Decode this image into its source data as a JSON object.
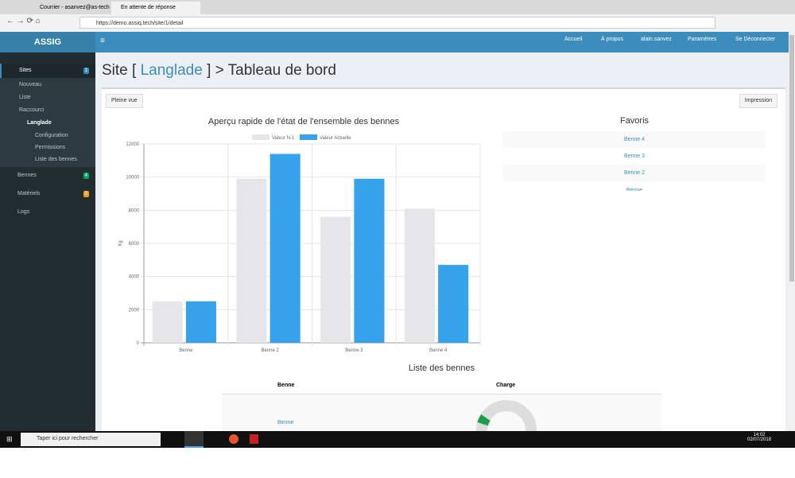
{
  "browser": {
    "tabs": [
      "Courrier - asanvez@as-tech",
      "En attente de réponse"
    ],
    "url": "https://demo.assiq.tech/site/1/detail"
  },
  "navbar": {
    "brand": "ASSIG",
    "links": [
      "Accueil",
      "À propos",
      "alain.sanvez",
      "Paramètres",
      "Se Déconnecter"
    ]
  },
  "sidebar": {
    "items": [
      {
        "label": "Sites",
        "badge": 1
      },
      {
        "label": "Nouveau"
      },
      {
        "label": "Liste"
      },
      {
        "label": "Raccourci"
      },
      {
        "label": "Langlade"
      },
      {
        "label": "Configuration"
      },
      {
        "label": "Permissions"
      },
      {
        "label": "Liste des bennes"
      },
      {
        "label": "Bennes",
        "badge": 4
      },
      {
        "label": "Matériels",
        "badge": 5
      },
      {
        "label": "Logs"
      }
    ]
  },
  "page": {
    "title_prefix": "Site [",
    "site": "Langlade",
    "title_suffix": "] > Tableau de bord",
    "buttons": [
      "Pleine vue",
      "Impression"
    ]
  },
  "chart_data": {
    "type": "bar",
    "title": "Aperçu rapide de l'état de l'ensemble des bennes",
    "ylabel": "Kg",
    "categories": [
      "Benne",
      "Benne 2",
      "Benne 3",
      "Benne 4"
    ],
    "series": [
      {
        "name": "Valeur N-1",
        "color": "#e6e6ea",
        "values": [
          2500,
          9900,
          7600,
          8100
        ]
      },
      {
        "name": "Valeur Actuelle",
        "color": "#36a2eb",
        "values": [
          2500,
          11400,
          9900,
          4700
        ]
      }
    ],
    "ylim": [
      0,
      12000
    ],
    "yticks": [
      0,
      2000,
      4000,
      6000,
      8000,
      10000,
      12000
    ],
    "grid": true,
    "legend": "top"
  },
  "favoris": {
    "title": "Favoris",
    "items": [
      "Benne 4",
      "Benne 3",
      "Benne 2",
      "Benne"
    ]
  },
  "list": {
    "title": "Liste des bennes",
    "headers": [
      "Benne",
      "Charge"
    ],
    "rows": [
      [
        "Benne"
      ]
    ]
  },
  "taskbar": {
    "search": "Taper ici pour rechercher",
    "time": "14:02",
    "date": "02/07/2018"
  }
}
